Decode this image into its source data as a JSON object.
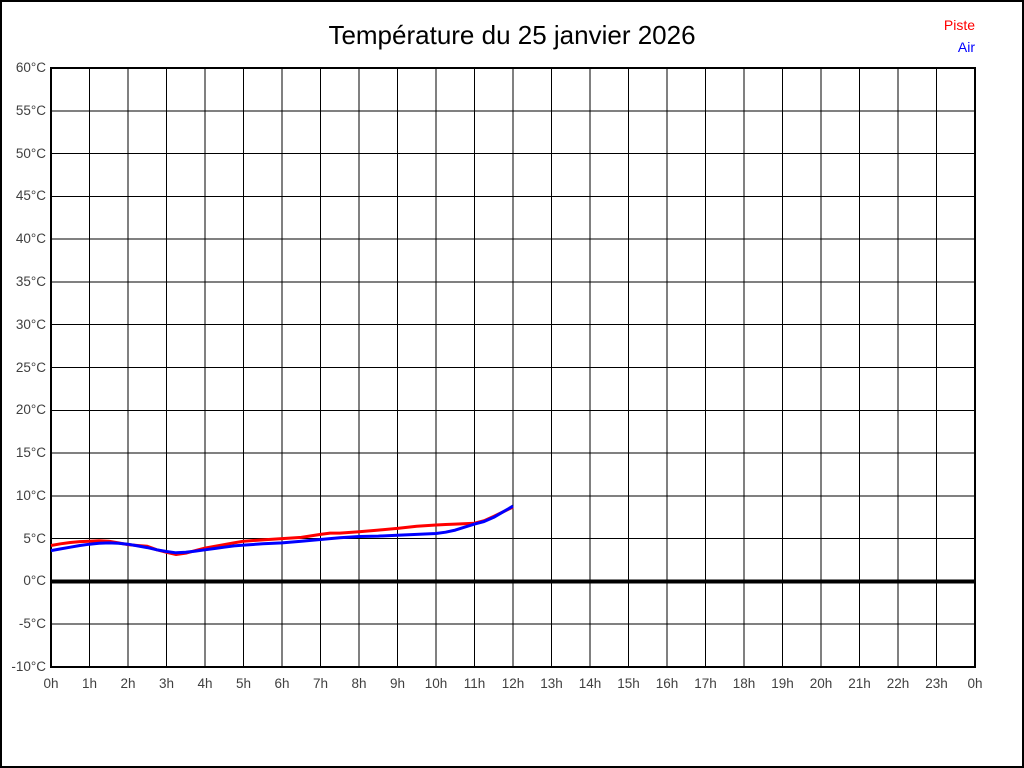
{
  "chart_data": {
    "type": "line",
    "title": "Température du 25 janvier 2026",
    "legend": {
      "position": "top-right",
      "piste": {
        "label": "Piste",
        "color": "#ff0000"
      },
      "air": {
        "label": "Air",
        "color": "#0000ff"
      }
    },
    "x_axis": {
      "lim": [
        0,
        24
      ],
      "tick_labels": [
        "0h",
        "1h",
        "2h",
        "3h",
        "4h",
        "5h",
        "6h",
        "7h",
        "8h",
        "9h",
        "10h",
        "11h",
        "12h",
        "13h",
        "14h",
        "15h",
        "16h",
        "17h",
        "18h",
        "19h",
        "20h",
        "21h",
        "22h",
        "23h",
        "0h"
      ]
    },
    "y_axis": {
      "lim": [
        -10,
        60
      ],
      "tick_step": 5,
      "unit": "°C",
      "tick_labels": [
        "60°C",
        "55°C",
        "50°C",
        "45°C",
        "40°C",
        "35°C",
        "30°C",
        "25°C",
        "20°C",
        "15°C",
        "10°C",
        "5°C",
        "0°C",
        "-5°C",
        "-10°C"
      ]
    },
    "grid": true,
    "zero_line": {
      "value": 0,
      "color": "#000000",
      "width": 4
    },
    "x": [
      0,
      0.25,
      0.5,
      0.75,
      1,
      1.25,
      1.5,
      1.75,
      2,
      2.25,
      2.5,
      2.75,
      3,
      3.25,
      3.5,
      3.75,
      4,
      4.25,
      4.5,
      4.75,
      5,
      5.5,
      6,
      6.5,
      7,
      7.25,
      7.5,
      8,
      8.5,
      9,
      9.5,
      10,
      10.25,
      10.5,
      11,
      11.25,
      11.5,
      12
    ],
    "series": [
      {
        "name": "Piste",
        "color": "#ff0000",
        "values": [
          4.2,
          4.4,
          4.55,
          4.65,
          4.7,
          4.75,
          4.7,
          4.5,
          4.3,
          4.2,
          4.1,
          3.7,
          3.4,
          3.15,
          3.3,
          3.6,
          3.9,
          4.1,
          4.3,
          4.5,
          4.7,
          4.85,
          5.0,
          5.15,
          5.5,
          5.65,
          5.65,
          5.8,
          6.0,
          6.2,
          6.45,
          6.6,
          6.65,
          6.7,
          6.8,
          7.1,
          7.6,
          8.7
        ]
      },
      {
        "name": "Air",
        "color": "#0000ff",
        "values": [
          3.6,
          3.8,
          4.0,
          4.2,
          4.35,
          4.45,
          4.5,
          4.45,
          4.35,
          4.15,
          3.95,
          3.7,
          3.5,
          3.35,
          3.4,
          3.55,
          3.7,
          3.85,
          4.0,
          4.15,
          4.25,
          4.4,
          4.5,
          4.7,
          4.9,
          5.0,
          5.1,
          5.25,
          5.3,
          5.4,
          5.5,
          5.6,
          5.75,
          6.0,
          6.7,
          7.0,
          7.5,
          8.8
        ]
      }
    ]
  },
  "colors": {
    "background": "#ffffff",
    "grid": "#000000",
    "plot_border": "#000000",
    "axis_label": "#404040",
    "title": "#000000"
  }
}
